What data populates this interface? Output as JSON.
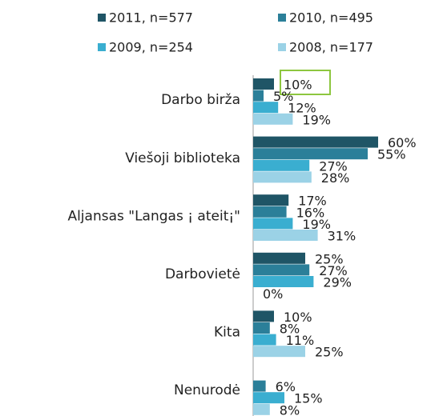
{
  "chart_data": {
    "type": "bar",
    "orientation": "horizontal",
    "categories": [
      "Darbo birža",
      "Viešoji biblioteka",
      "Aljansas \"Langas ¡ ateit¡\"",
      "Darbovietė",
      "Kita",
      "Nenurodė"
    ],
    "series": [
      {
        "name": "2011, n=577",
        "color": "#1f5566",
        "values": [
          10,
          60,
          17,
          25,
          10,
          null
        ],
        "value_labels": [
          "10%",
          "60%",
          "17%",
          "25%",
          "10%",
          null
        ]
      },
      {
        "name": "2010, n=495",
        "color": "#2b7f99",
        "values": [
          5,
          55,
          16,
          27,
          8,
          6
        ],
        "value_labels": [
          "5%",
          "55%",
          "16%",
          "27%",
          "8%",
          "6%"
        ]
      },
      {
        "name": "2009, n=254",
        "color": "#3aaed0",
        "values": [
          12,
          27,
          19,
          29,
          11,
          15
        ],
        "value_labels": [
          "12%",
          "27%",
          "19%",
          "29%",
          "11%",
          "15%"
        ]
      },
      {
        "name": "2008, n=177",
        "color": "#9bd2e6",
        "values": [
          19,
          28,
          31,
          0,
          25,
          8
        ],
        "value_labels": [
          "19%",
          "28%",
          "31%",
          "0%",
          "25%",
          "8%"
        ]
      }
    ]
  }
}
